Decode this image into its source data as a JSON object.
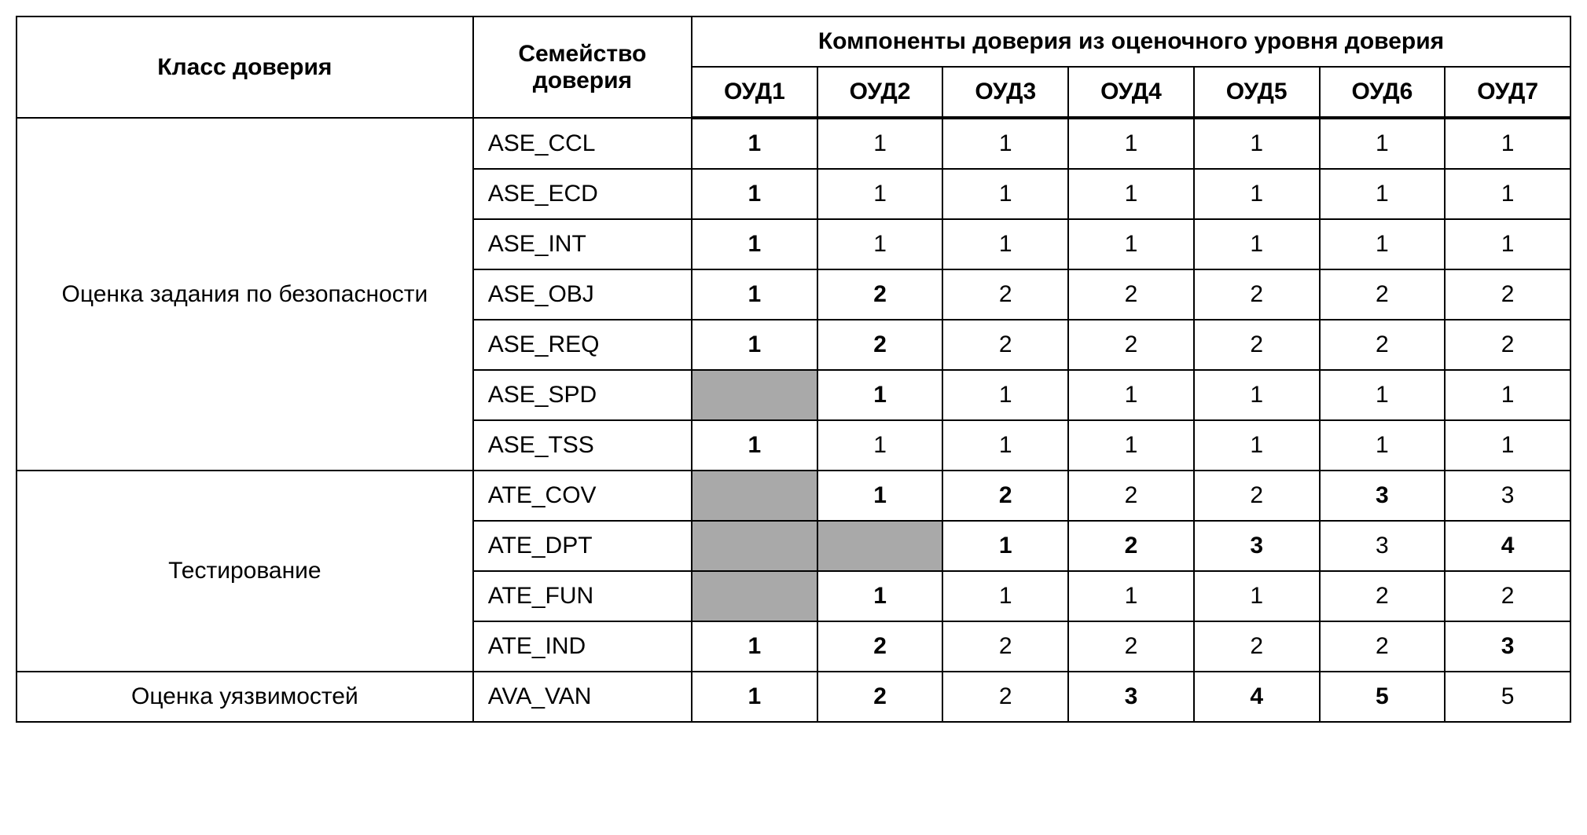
{
  "headers": {
    "class": "Класс доверия",
    "family": "Семейство доверия",
    "components_group": "Компоненты доверия из оценочного уровня доверия",
    "ouds": [
      "ОУД1",
      "ОУД2",
      "ОУД3",
      "ОУД4",
      "ОУД5",
      "ОУД6",
      "ОУД7"
    ]
  },
  "colors": {
    "shaded_bg": "#a9a9a9",
    "border": "#000000",
    "background": "#ffffff"
  },
  "groups": [
    {
      "class_label": "Оценка задания по безопасности",
      "rows": [
        {
          "family": "ASE_CCL",
          "cells": [
            {
              "v": "1",
              "b": true
            },
            {
              "v": "1"
            },
            {
              "v": "1"
            },
            {
              "v": "1"
            },
            {
              "v": "1"
            },
            {
              "v": "1"
            },
            {
              "v": "1"
            }
          ]
        },
        {
          "family": "ASE_ECD",
          "cells": [
            {
              "v": "1",
              "b": true
            },
            {
              "v": "1"
            },
            {
              "v": "1"
            },
            {
              "v": "1"
            },
            {
              "v": "1"
            },
            {
              "v": "1"
            },
            {
              "v": "1"
            }
          ]
        },
        {
          "family": "ASE_INT",
          "cells": [
            {
              "v": "1",
              "b": true
            },
            {
              "v": "1"
            },
            {
              "v": "1"
            },
            {
              "v": "1"
            },
            {
              "v": "1"
            },
            {
              "v": "1"
            },
            {
              "v": "1"
            }
          ]
        },
        {
          "family": "ASE_OBJ",
          "cells": [
            {
              "v": "1",
              "b": true
            },
            {
              "v": "2",
              "b": true
            },
            {
              "v": "2"
            },
            {
              "v": "2"
            },
            {
              "v": "2"
            },
            {
              "v": "2"
            },
            {
              "v": "2"
            }
          ]
        },
        {
          "family": "ASE_REQ",
          "cells": [
            {
              "v": "1",
              "b": true
            },
            {
              "v": "2",
              "b": true
            },
            {
              "v": "2"
            },
            {
              "v": "2"
            },
            {
              "v": "2"
            },
            {
              "v": "2"
            },
            {
              "v": "2"
            }
          ]
        },
        {
          "family": "ASE_SPD",
          "cells": [
            {
              "shaded": true
            },
            {
              "v": "1",
              "b": true
            },
            {
              "v": "1"
            },
            {
              "v": "1"
            },
            {
              "v": "1"
            },
            {
              "v": "1"
            },
            {
              "v": "1"
            }
          ]
        },
        {
          "family": "ASE_TSS",
          "cells": [
            {
              "v": "1",
              "b": true
            },
            {
              "v": "1"
            },
            {
              "v": "1"
            },
            {
              "v": "1"
            },
            {
              "v": "1"
            },
            {
              "v": "1"
            },
            {
              "v": "1"
            }
          ]
        }
      ]
    },
    {
      "class_label": "Тестирование",
      "rows": [
        {
          "family": "ATE_COV",
          "cells": [
            {
              "shaded": true
            },
            {
              "v": "1",
              "b": true
            },
            {
              "v": "2",
              "b": true
            },
            {
              "v": "2"
            },
            {
              "v": "2"
            },
            {
              "v": "3",
              "b": true
            },
            {
              "v": "3"
            }
          ]
        },
        {
          "family": "ATE_DPT",
          "cells": [
            {
              "shaded": true
            },
            {
              "shaded": true
            },
            {
              "v": "1",
              "b": true
            },
            {
              "v": "2",
              "b": true
            },
            {
              "v": "3",
              "b": true
            },
            {
              "v": "3"
            },
            {
              "v": "4",
              "b": true
            }
          ]
        },
        {
          "family": "ATE_FUN",
          "cells": [
            {
              "shaded": true
            },
            {
              "v": "1",
              "b": true
            },
            {
              "v": "1"
            },
            {
              "v": "1"
            },
            {
              "v": "1"
            },
            {
              "v": "2"
            },
            {
              "v": "2"
            }
          ]
        },
        {
          "family": "ATE_IND",
          "cells": [
            {
              "v": "1",
              "b": true
            },
            {
              "v": "2",
              "b": true
            },
            {
              "v": "2"
            },
            {
              "v": "2"
            },
            {
              "v": "2"
            },
            {
              "v": "2"
            },
            {
              "v": "3",
              "b": true
            }
          ]
        }
      ]
    },
    {
      "class_label": "Оценка уязвимостей",
      "rows": [
        {
          "family": "AVA_VAN",
          "cells": [
            {
              "v": "1",
              "b": true
            },
            {
              "v": "2",
              "b": true
            },
            {
              "v": "2"
            },
            {
              "v": "3",
              "b": true
            },
            {
              "v": "4",
              "b": true
            },
            {
              "v": "5",
              "b": true
            },
            {
              "v": "5"
            }
          ]
        }
      ]
    }
  ]
}
